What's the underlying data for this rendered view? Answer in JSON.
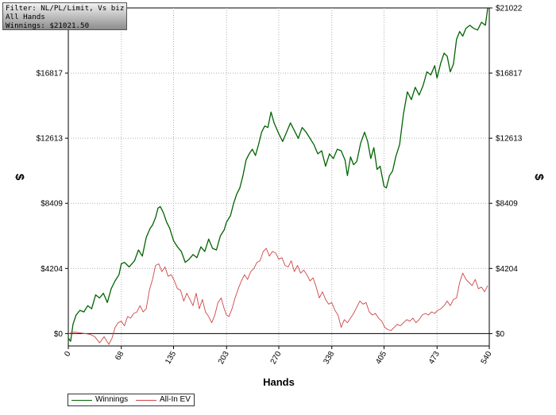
{
  "info": {
    "line1": "Filter: NL/PL/Limit, Vs bizithebest",
    "line2": "All Hands",
    "line3": "Winnings: $21021.50"
  },
  "colors": {
    "winnings": "#006400",
    "allin_ev": "#d04545",
    "grid": "#b0b0b0"
  },
  "chart_data": {
    "type": "line",
    "xlabel": "Hands",
    "ylabel": "$",
    "xlim": [
      0,
      540
    ],
    "ylim": [
      -800,
      21022
    ],
    "x_ticks": [
      {
        "value": 0,
        "label": "0"
      },
      {
        "value": 68,
        "label": "68"
      },
      {
        "value": 135,
        "label": "135"
      },
      {
        "value": 203,
        "label": "203"
      },
      {
        "value": 270,
        "label": "270"
      },
      {
        "value": 338,
        "label": "338"
      },
      {
        "value": 405,
        "label": "405"
      },
      {
        "value": 473,
        "label": "473"
      },
      {
        "value": 540,
        "label": "540"
      }
    ],
    "y_ticks": [
      {
        "value": 0,
        "label": "$0"
      },
      {
        "value": 4204,
        "label": "$4204"
      },
      {
        "value": 8409,
        "label": "$8409"
      },
      {
        "value": 12613,
        "label": "$12613"
      },
      {
        "value": 16817,
        "label": "$16817"
      },
      {
        "value": 21022,
        "label": "$21022"
      }
    ],
    "legend_position": "bottom-left",
    "grid": true,
    "series": [
      {
        "name": "Winnings",
        "points": [
          [
            0,
            -300
          ],
          [
            3,
            -500
          ],
          [
            6,
            600
          ],
          [
            10,
            1200
          ],
          [
            15,
            1500
          ],
          [
            20,
            1400
          ],
          [
            25,
            1800
          ],
          [
            30,
            1600
          ],
          [
            35,
            2500
          ],
          [
            40,
            2300
          ],
          [
            45,
            2600
          ],
          [
            50,
            2000
          ],
          [
            55,
            2900
          ],
          [
            60,
            3400
          ],
          [
            65,
            3800
          ],
          [
            68,
            4500
          ],
          [
            72,
            4600
          ],
          [
            78,
            4300
          ],
          [
            85,
            4700
          ],
          [
            90,
            5400
          ],
          [
            95,
            5000
          ],
          [
            100,
            6200
          ],
          [
            105,
            6800
          ],
          [
            108,
            7000
          ],
          [
            112,
            7500
          ],
          [
            115,
            8100
          ],
          [
            118,
            8200
          ],
          [
            122,
            7800
          ],
          [
            126,
            7200
          ],
          [
            130,
            6800
          ],
          [
            135,
            6000
          ],
          [
            140,
            5600
          ],
          [
            145,
            5300
          ],
          [
            150,
            4600
          ],
          [
            155,
            4800
          ],
          [
            160,
            5100
          ],
          [
            165,
            4900
          ],
          [
            170,
            5600
          ],
          [
            175,
            5300
          ],
          [
            180,
            6100
          ],
          [
            185,
            5500
          ],
          [
            190,
            5400
          ],
          [
            195,
            6300
          ],
          [
            200,
            6700
          ],
          [
            203,
            7200
          ],
          [
            208,
            7600
          ],
          [
            212,
            8400
          ],
          [
            216,
            9000
          ],
          [
            220,
            9400
          ],
          [
            224,
            10200
          ],
          [
            228,
            11200
          ],
          [
            232,
            11600
          ],
          [
            236,
            11900
          ],
          [
            240,
            11500
          ],
          [
            244,
            12200
          ],
          [
            248,
            13000
          ],
          [
            252,
            13400
          ],
          [
            256,
            13300
          ],
          [
            260,
            14300
          ],
          [
            264,
            13600
          ],
          [
            270,
            12900
          ],
          [
            275,
            12400
          ],
          [
            280,
            13000
          ],
          [
            285,
            13600
          ],
          [
            290,
            13100
          ],
          [
            295,
            12600
          ],
          [
            300,
            13300
          ],
          [
            305,
            13000
          ],
          [
            310,
            12600
          ],
          [
            315,
            12200
          ],
          [
            320,
            11600
          ],
          [
            325,
            11800
          ],
          [
            330,
            10800
          ],
          [
            335,
            11600
          ],
          [
            340,
            11300
          ],
          [
            345,
            11900
          ],
          [
            350,
            11800
          ],
          [
            355,
            11200
          ],
          [
            358,
            10200
          ],
          [
            362,
            11400
          ],
          [
            366,
            10900
          ],
          [
            370,
            11100
          ],
          [
            375,
            12300
          ],
          [
            380,
            13000
          ],
          [
            384,
            12400
          ],
          [
            388,
            11300
          ],
          [
            392,
            12000
          ],
          [
            396,
            10600
          ],
          [
            400,
            10800
          ],
          [
            405,
            9500
          ],
          [
            408,
            9400
          ],
          [
            412,
            10200
          ],
          [
            416,
            10500
          ],
          [
            420,
            11400
          ],
          [
            425,
            12200
          ],
          [
            430,
            14200
          ],
          [
            435,
            15600
          ],
          [
            440,
            15100
          ],
          [
            445,
            15900
          ],
          [
            450,
            15400
          ],
          [
            455,
            16000
          ],
          [
            460,
            16900
          ],
          [
            465,
            16700
          ],
          [
            470,
            17300
          ],
          [
            473,
            16500
          ],
          [
            478,
            17500
          ],
          [
            482,
            18100
          ],
          [
            486,
            17900
          ],
          [
            490,
            16900
          ],
          [
            494,
            17400
          ],
          [
            498,
            19000
          ],
          [
            502,
            19500
          ],
          [
            506,
            19200
          ],
          [
            510,
            19700
          ],
          [
            515,
            19900
          ],
          [
            520,
            19700
          ],
          [
            525,
            19600
          ],
          [
            530,
            20100
          ],
          [
            535,
            19900
          ],
          [
            538,
            21000
          ]
        ]
      },
      {
        "name": "All-In EV",
        "points": [
          [
            0,
            0
          ],
          [
            8,
            100
          ],
          [
            15,
            50
          ],
          [
            22,
            0
          ],
          [
            28,
            -50
          ],
          [
            34,
            -200
          ],
          [
            40,
            -600
          ],
          [
            46,
            -200
          ],
          [
            52,
            -700
          ],
          [
            56,
            -300
          ],
          [
            60,
            400
          ],
          [
            64,
            700
          ],
          [
            68,
            800
          ],
          [
            72,
            500
          ],
          [
            76,
            1100
          ],
          [
            80,
            1000
          ],
          [
            84,
            1300
          ],
          [
            88,
            1400
          ],
          [
            92,
            1800
          ],
          [
            96,
            1400
          ],
          [
            100,
            1600
          ],
          [
            104,
            2800
          ],
          [
            108,
            3500
          ],
          [
            112,
            4400
          ],
          [
            116,
            4500
          ],
          [
            120,
            4000
          ],
          [
            124,
            4300
          ],
          [
            128,
            3700
          ],
          [
            132,
            3800
          ],
          [
            136,
            3400
          ],
          [
            140,
            2900
          ],
          [
            144,
            2800
          ],
          [
            148,
            2100
          ],
          [
            152,
            2600
          ],
          [
            156,
            2200
          ],
          [
            160,
            1800
          ],
          [
            164,
            2600
          ],
          [
            168,
            1600
          ],
          [
            172,
            2200
          ],
          [
            176,
            1400
          ],
          [
            180,
            1100
          ],
          [
            184,
            700
          ],
          [
            188,
            1200
          ],
          [
            192,
            2000
          ],
          [
            196,
            2300
          ],
          [
            200,
            1600
          ],
          [
            203,
            1200
          ],
          [
            206,
            1100
          ],
          [
            210,
            1600
          ],
          [
            214,
            2300
          ],
          [
            218,
            2900
          ],
          [
            222,
            3400
          ],
          [
            226,
            3800
          ],
          [
            230,
            3500
          ],
          [
            234,
            4000
          ],
          [
            238,
            4200
          ],
          [
            242,
            4600
          ],
          [
            246,
            4700
          ],
          [
            250,
            5300
          ],
          [
            254,
            5500
          ],
          [
            258,
            5000
          ],
          [
            262,
            5300
          ],
          [
            266,
            5200
          ],
          [
            270,
            4800
          ],
          [
            274,
            4900
          ],
          [
            278,
            4400
          ],
          [
            282,
            4300
          ],
          [
            286,
            4700
          ],
          [
            290,
            4000
          ],
          [
            294,
            4400
          ],
          [
            298,
            3900
          ],
          [
            302,
            4100
          ],
          [
            306,
            3800
          ],
          [
            310,
            3400
          ],
          [
            314,
            3600
          ],
          [
            318,
            3000
          ],
          [
            322,
            2300
          ],
          [
            326,
            2700
          ],
          [
            330,
            2200
          ],
          [
            334,
            1900
          ],
          [
            338,
            2000
          ],
          [
            342,
            1500
          ],
          [
            346,
            1200
          ],
          [
            350,
            400
          ],
          [
            354,
            900
          ],
          [
            358,
            700
          ],
          [
            362,
            1000
          ],
          [
            366,
            1300
          ],
          [
            370,
            1700
          ],
          [
            374,
            2100
          ],
          [
            378,
            1900
          ],
          [
            382,
            2000
          ],
          [
            386,
            1400
          ],
          [
            390,
            1200
          ],
          [
            394,
            1300
          ],
          [
            398,
            1000
          ],
          [
            402,
            800
          ],
          [
            406,
            400
          ],
          [
            410,
            250
          ],
          [
            414,
            200
          ],
          [
            418,
            400
          ],
          [
            422,
            600
          ],
          [
            426,
            500
          ],
          [
            430,
            700
          ],
          [
            434,
            900
          ],
          [
            438,
            800
          ],
          [
            442,
            1000
          ],
          [
            446,
            700
          ],
          [
            450,
            900
          ],
          [
            454,
            1200
          ],
          [
            458,
            1300
          ],
          [
            462,
            1200
          ],
          [
            466,
            1400
          ],
          [
            470,
            1300
          ],
          [
            474,
            1500
          ],
          [
            478,
            1600
          ],
          [
            482,
            1800
          ],
          [
            486,
            2100
          ],
          [
            490,
            1800
          ],
          [
            494,
            2200
          ],
          [
            498,
            2300
          ],
          [
            502,
            3300
          ],
          [
            506,
            3900
          ],
          [
            510,
            3500
          ],
          [
            514,
            3300
          ],
          [
            518,
            3100
          ],
          [
            522,
            3500
          ],
          [
            526,
            2900
          ],
          [
            530,
            3000
          ],
          [
            534,
            2700
          ],
          [
            538,
            3100
          ]
        ]
      }
    ]
  }
}
